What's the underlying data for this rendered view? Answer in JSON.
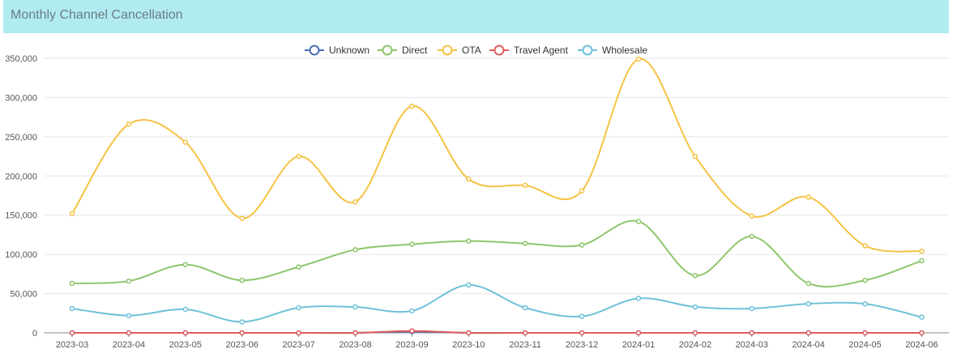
{
  "header": {
    "title": "Monthly Channel Cancellation"
  },
  "chart_data": {
    "type": "line",
    "title": "Monthly Channel Cancellation",
    "xlabel": "",
    "ylabel": "",
    "ylim": [
      0,
      350000
    ],
    "yticks": [
      0,
      50000,
      100000,
      150000,
      200000,
      250000,
      300000,
      350000
    ],
    "ytick_labels": [
      "0",
      "50,000",
      "100,000",
      "150,000",
      "200,000",
      "250,000",
      "300,000",
      "350,000"
    ],
    "legend_position": "top-center",
    "grid": true,
    "categories": [
      "2023-03",
      "2023-04",
      "2023-05",
      "2023-06",
      "2023-07",
      "2023-08",
      "2023-09",
      "2023-10",
      "2023-11",
      "2023-12",
      "2024-01",
      "2024-02",
      "2024-03",
      "2024-04",
      "2024-05",
      "2024-06"
    ],
    "series": [
      {
        "name": "Unknown",
        "color": "#4a6fb5",
        "values": [
          0,
          0,
          0,
          0,
          0,
          0,
          1500,
          0,
          0,
          0,
          0,
          0,
          0,
          0,
          0,
          0
        ]
      },
      {
        "name": "Direct",
        "color": "#8cc66b",
        "values": [
          63000,
          66000,
          87000,
          67000,
          84000,
          106000,
          113000,
          117000,
          114000,
          112000,
          142000,
          73000,
          123000,
          63000,
          67000,
          92000
        ]
      },
      {
        "name": "OTA",
        "color": "#f5c242",
        "values": [
          152000,
          266000,
          243000,
          146000,
          225000,
          167000,
          289000,
          196000,
          188000,
          181000,
          349000,
          225000,
          149000,
          173000,
          111000,
          104000
        ]
      },
      {
        "name": "Travel Agent",
        "color": "#e05c5c",
        "values": [
          0,
          0,
          0,
          0,
          0,
          0,
          2500,
          0,
          0,
          0,
          0,
          0,
          0,
          0,
          0,
          0
        ]
      },
      {
        "name": "Wholesale",
        "color": "#6ec1d9",
        "values": [
          31000,
          22000,
          30000,
          14000,
          32000,
          33000,
          28000,
          61000,
          32000,
          21000,
          44000,
          33000,
          31000,
          37000,
          37000,
          20000
        ]
      }
    ]
  }
}
